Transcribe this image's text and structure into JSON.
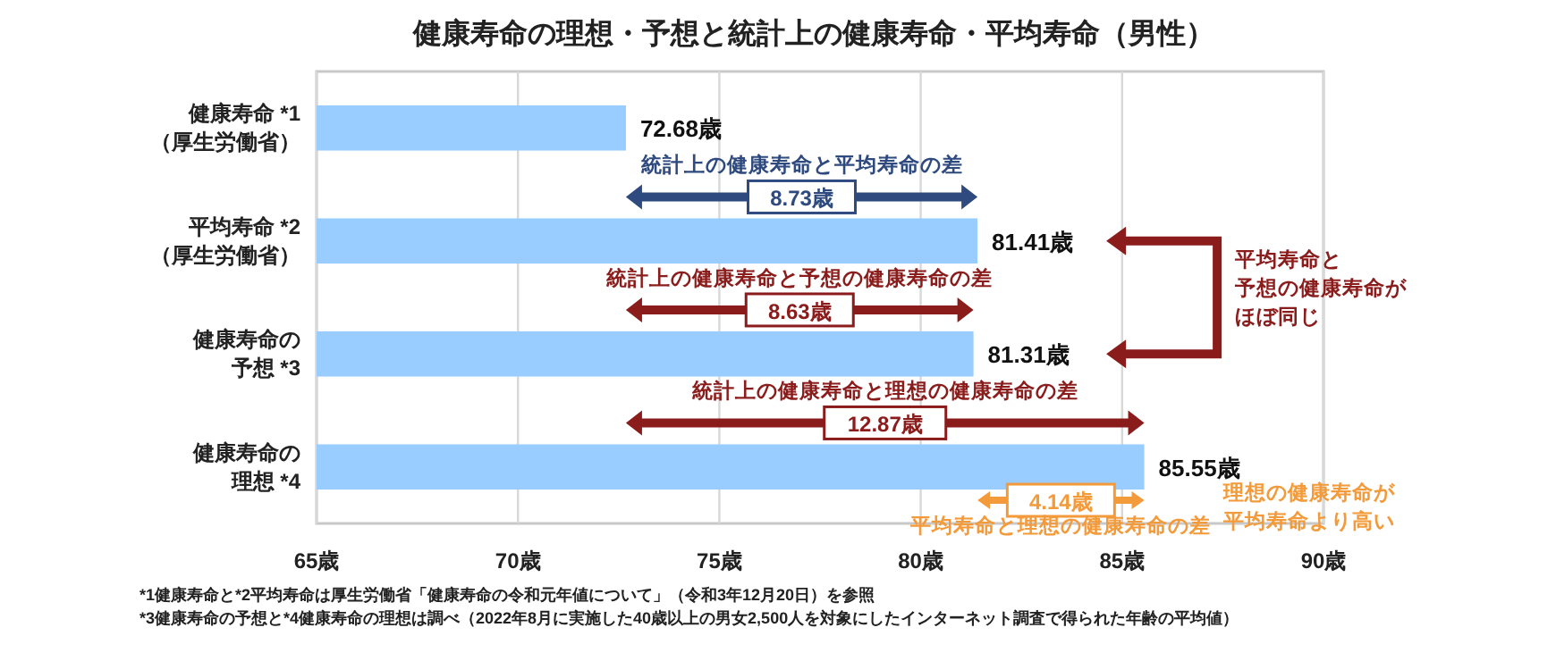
{
  "chart_data": {
    "type": "bar",
    "orientation": "horizontal",
    "title": "健康寿命の理想・予想と統計上の健康寿命・平均寿命（男性）",
    "categories": [
      "健康寿命 *1（厚生労働省）",
      "平均寿命 *2（厚生労働省）",
      "健康寿命の予想 *3",
      "健康寿命の理想 *4"
    ],
    "values": [
      72.68,
      81.41,
      81.31,
      85.55
    ],
    "value_labels": [
      "72.68歳",
      "81.41歳",
      "81.31歳",
      "85.55歳"
    ],
    "color": "#99ccff",
    "xlim": [
      65,
      90
    ],
    "xticks": [
      {
        "value": 65,
        "label": "65歳"
      },
      {
        "value": 70,
        "label": "70歳"
      },
      {
        "value": 75,
        "label": "75歳"
      },
      {
        "value": 80,
        "label": "80歳"
      },
      {
        "value": 85,
        "label": "85歳"
      },
      {
        "value": 90,
        "label": "90歳"
      }
    ],
    "grid": "x",
    "annotations": [
      "統計上の健康寿命と平均寿命の差",
      "8.73歳",
      "統計上の健康寿命と予想の健康寿命の差",
      "8.63歳",
      "統計上の健康寿命と理想の健康寿命の差",
      "12.87歳",
      "4.14歳",
      "平均寿命と理想の健康寿命の差",
      "平均寿命と予想の健康寿命がほぼ同じ",
      "理想の健康寿命が平均寿命より高い",
      "*1健康寿命と*2平均寿命は厚生労働省「健康寿命の令和元年値について」（令和3年12月20日）を参照",
      "*3健康寿命の予想と*4健康寿命の理想は調べ（2022年8月に実施した40歳以上の男女2,500人を対象にしたインターネット調査で得られた年齢の平均値）"
    ]
  }
}
